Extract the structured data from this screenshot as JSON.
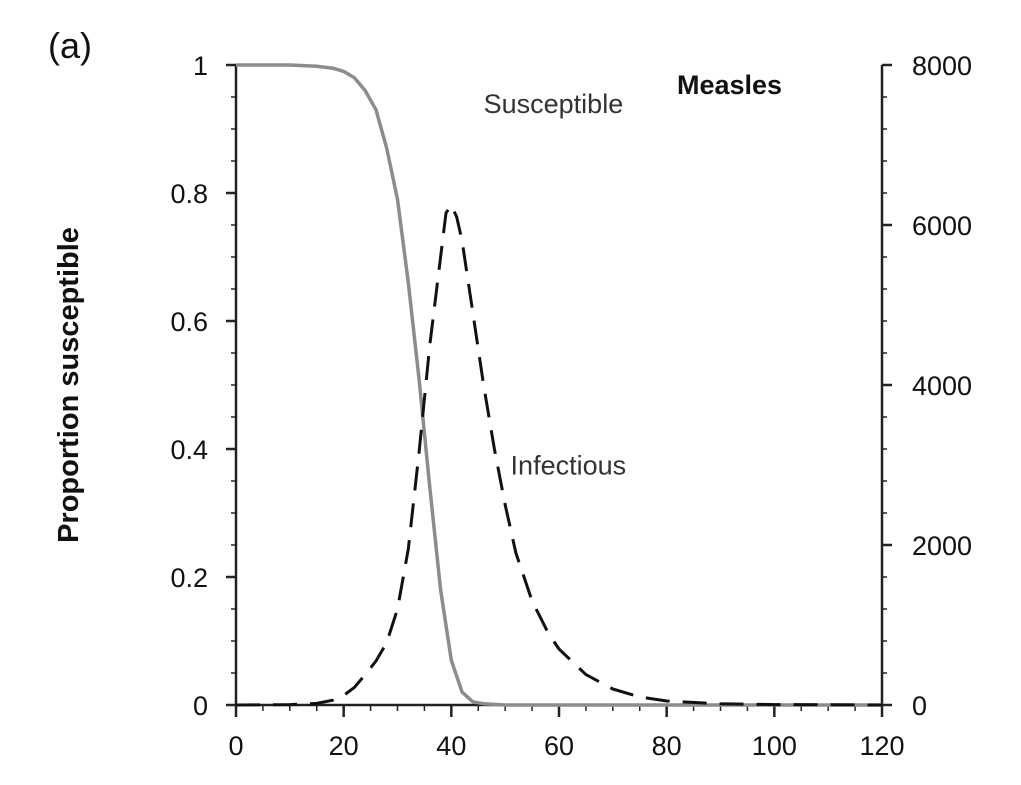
{
  "chart_data": {
    "type": "line",
    "panel_label": "(a)",
    "title": "Measles",
    "ylabel": "Proportion susceptible",
    "xlabel": "",
    "y2label": "",
    "xlim": [
      0,
      120
    ],
    "ylim": [
      0,
      1
    ],
    "y2lim": [
      0,
      8000
    ],
    "x_ticks": [
      0,
      20,
      40,
      60,
      80,
      100,
      120
    ],
    "y_ticks": [
      0,
      0.2,
      0.4,
      0.6,
      0.8,
      1
    ],
    "y2_ticks": [
      0,
      2000,
      4000,
      6000,
      8000
    ],
    "grid": false,
    "legend": "none",
    "series": [
      {
        "name": "Susceptible",
        "axis": "left",
        "style": "solid",
        "color": "#8c8c8c",
        "x": [
          0,
          5,
          10,
          15,
          18,
          20,
          22,
          24,
          26,
          28,
          30,
          32,
          34,
          36,
          38,
          40,
          42,
          44,
          46,
          50,
          60,
          80,
          100,
          120
        ],
        "y": [
          1.0,
          1.0,
          1.0,
          0.998,
          0.995,
          0.99,
          0.98,
          0.96,
          0.93,
          0.87,
          0.79,
          0.66,
          0.51,
          0.34,
          0.18,
          0.07,
          0.02,
          0.005,
          0.002,
          0.0,
          0.0,
          0.0,
          0.0,
          0.0
        ]
      },
      {
        "name": "Infectious",
        "axis": "right",
        "style": "dashed",
        "color": "#111111",
        "x": [
          0,
          10,
          15,
          18,
          20,
          22,
          24,
          26,
          28,
          30,
          32,
          34,
          36,
          38,
          39,
          40,
          41,
          42,
          44,
          46,
          48,
          50,
          52,
          55,
          58,
          60,
          65,
          70,
          75,
          80,
          90,
          100,
          120
        ],
        "y": [
          0,
          5,
          20,
          60,
          120,
          220,
          380,
          550,
          780,
          1200,
          1950,
          3150,
          4500,
          5600,
          6150,
          6250,
          6100,
          5800,
          4900,
          4000,
          3200,
          2500,
          1900,
          1300,
          900,
          700,
          380,
          200,
          100,
          50,
          15,
          5,
          0
        ]
      }
    ],
    "annotations": [
      {
        "text": "Susceptible",
        "x": 46,
        "y": 0.925
      },
      {
        "text": "Infectious",
        "x": 51,
        "y": 0.36
      }
    ]
  }
}
